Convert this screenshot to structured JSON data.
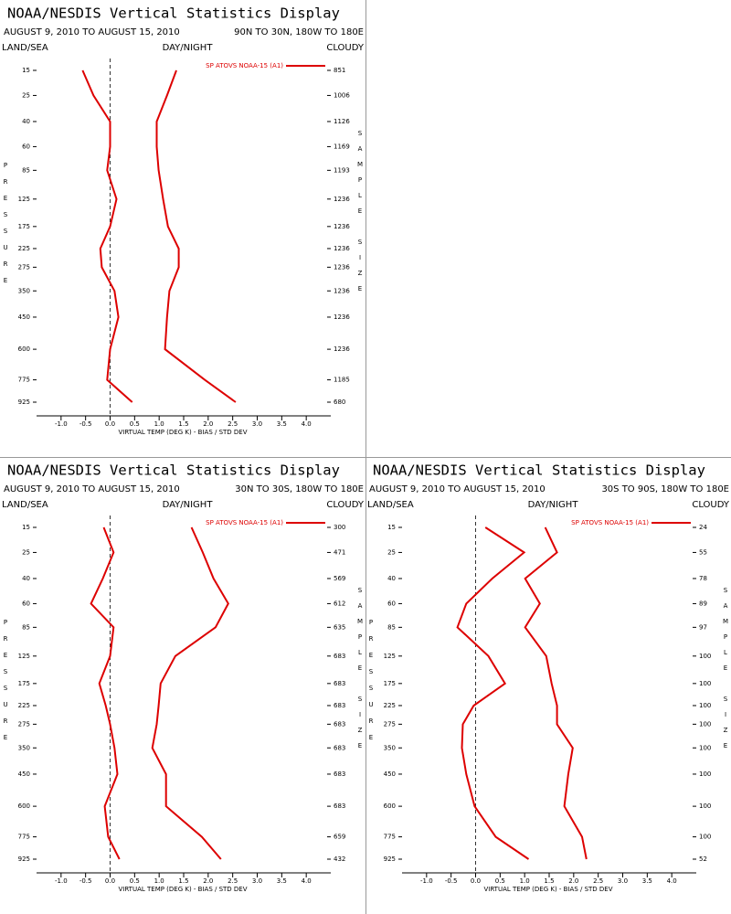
{
  "chart_data": [
    {
      "type": "line",
      "title": "NOAA/NESDIS Vertical Statistics Display",
      "subtitle": "AUGUST 9, 2010 TO AUGUST 15, 2010",
      "region": "90N TO 30N, 180W TO 180E",
      "land_sea": "LAND/SEA",
      "day_night": "DAY/NIGHT",
      "cloudy": "CLOUDY",
      "ylabel": "PRESSURE",
      "y2label": "SAMPLE SIZE",
      "xlabel": "VIRTUAL TEMP (DEG K) - BIAS / STD DEV",
      "y": [
        15,
        25,
        40,
        60,
        85,
        125,
        175,
        225,
        275,
        350,
        450,
        600,
        775,
        925
      ],
      "sample_size": [
        851,
        1006,
        1126,
        1169,
        1193,
        1236,
        1236,
        1236,
        1236,
        1236,
        1236,
        1236,
        1185,
        680
      ],
      "xlim": [
        -1.5,
        4.5
      ],
      "xticks": [
        {
          "value": -1,
          "label": "-1.0"
        },
        -0.5,
        {
          "value": 0,
          "label": "0.0"
        },
        0.5,
        {
          "value": 1,
          "label": "1.0"
        },
        1.5,
        {
          "value": 2,
          "label": "2.0"
        },
        2.5,
        {
          "value": 3,
          "label": "3.0"
        },
        3.5,
        {
          "value": 4,
          "label": "4.0"
        }
      ],
      "series": [
        {
          "name": "SP ATOVS NOAA-15 (A1)",
          "color": "#dd0000",
          "values": [
            -0.56,
            -0.34,
            0.0,
            0.0,
            -0.06,
            0.13,
            0.0,
            -0.2,
            -0.17,
            0.09,
            0.17,
            0.0,
            -0.06,
            0.45
          ],
          "std_dev": [
            1.35,
            1.16,
            0.95,
            0.95,
            0.99,
            1.08,
            1.18,
            1.4,
            1.4,
            1.21,
            1.16,
            1.12,
            1.93,
            2.56
          ]
        }
      ]
    },
    {
      "type": "line",
      "title": "NOAA/NESDIS Vertical Statistics Display",
      "subtitle": "AUGUST 9, 2010 TO AUGUST 15, 2010",
      "region": "30N TO 30S, 180W TO 180E",
      "land_sea": "LAND/SEA",
      "day_night": "DAY/NIGHT",
      "cloudy": "CLOUDY",
      "ylabel": "PRESSURE",
      "y2label": "SAMPLE SIZE",
      "xlabel": "VIRTUAL TEMP (DEG K) - BIAS / STD DEV",
      "y": [
        15,
        25,
        40,
        60,
        85,
        125,
        175,
        225,
        275,
        350,
        450,
        600,
        775,
        925
      ],
      "sample_size": [
        300,
        471,
        569,
        612,
        635,
        683,
        683,
        683,
        683,
        683,
        683,
        683,
        659,
        432
      ],
      "xlim": [
        -1.5,
        4.5
      ],
      "xticks": [
        {
          "value": -1,
          "label": "-1.0"
        },
        -0.5,
        {
          "value": 0,
          "label": "0.0"
        },
        0.5,
        {
          "value": 1,
          "label": "1.0"
        },
        1.5,
        {
          "value": 2,
          "label": "2.0"
        },
        2.5,
        {
          "value": 3,
          "label": "3.0"
        },
        3.5,
        {
          "value": 4,
          "label": "4.0"
        }
      ],
      "series": [
        {
          "name": "SP ATOVS NOAA-15 (A1)",
          "color": "#dd0000",
          "values": [
            -0.13,
            0.07,
            -0.15,
            -0.39,
            0.07,
            0.0,
            -0.22,
            -0.09,
            0.0,
            0.09,
            0.15,
            -0.11,
            -0.04,
            0.19
          ],
          "std_dev": [
            1.66,
            1.89,
            2.11,
            2.41,
            2.15,
            1.33,
            1.03,
            0.99,
            0.95,
            0.86,
            1.14,
            1.14,
            1.87,
            2.26
          ]
        }
      ]
    },
    {
      "type": "line",
      "title": "NOAA/NESDIS Vertical Statistics Display",
      "subtitle": "AUGUST 9, 2010 TO AUGUST 15, 2010",
      "region": "30S TO 90S, 180W TO 180E",
      "land_sea": "LAND/SEA",
      "day_night": "DAY/NIGHT",
      "cloudy": "CLOUDY",
      "ylabel": "PRESSURE",
      "y2label": "SAMPLE SIZE",
      "xlabel": "VIRTUAL TEMP (DEG K) - BIAS / STD DEV",
      "y": [
        15,
        25,
        40,
        60,
        85,
        125,
        175,
        225,
        275,
        350,
        450,
        600,
        775,
        925
      ],
      "sample_size": [
        24,
        55,
        78,
        89,
        97,
        100,
        100,
        100,
        100,
        100,
        100,
        100,
        100,
        52
      ],
      "xlim": [
        -1.5,
        4.5
      ],
      "xticks": [
        {
          "value": -1,
          "label": "-1.0"
        },
        -0.5,
        {
          "value": 0,
          "label": "0.0"
        },
        0.5,
        {
          "value": 1,
          "label": "1.0"
        },
        1.5,
        {
          "value": 2,
          "label": "2.0"
        },
        2.5,
        {
          "value": 3,
          "label": "3.0"
        },
        3.5,
        {
          "value": 4,
          "label": "4.0"
        }
      ],
      "series": [
        {
          "name": "SP ATOVS NOAA-15 (A1)",
          "color": "#dd0000",
          "values": [
            0.2,
            0.99,
            0.34,
            -0.19,
            -0.37,
            0.26,
            0.6,
            -0.04,
            -0.26,
            -0.28,
            -0.19,
            -0.02,
            0.41,
            1.08
          ],
          "std_dev": [
            1.42,
            1.66,
            1.01,
            1.31,
            1.01,
            1.44,
            1.55,
            1.66,
            1.66,
            1.98,
            1.89,
            1.81,
            2.17,
            2.26
          ]
        }
      ]
    }
  ]
}
